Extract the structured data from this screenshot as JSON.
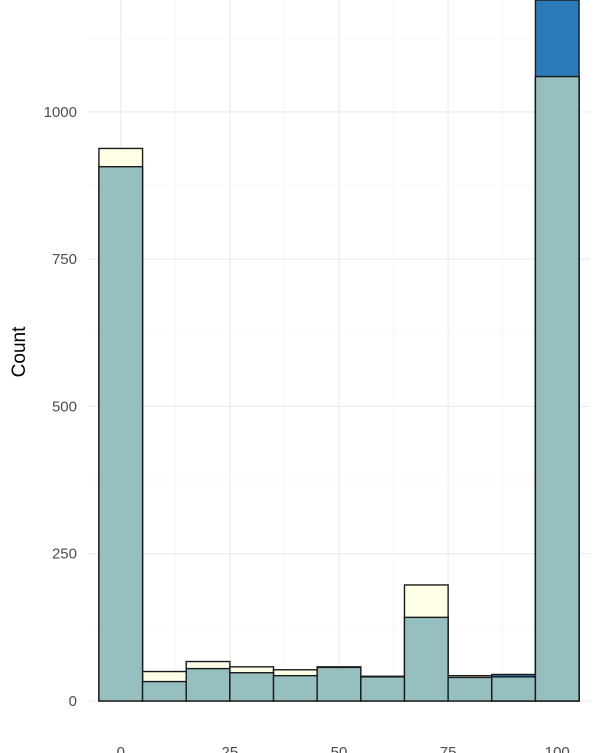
{
  "chart_data": {
    "type": "bar",
    "title": "",
    "xlabel": "",
    "ylabel": "Count",
    "x_ticks": [
      "0",
      "25",
      "50",
      "75",
      "100"
    ],
    "y_ticks": [
      "0",
      "250",
      "500",
      "750",
      "1000"
    ],
    "xlim": [
      -7.5,
      107.5
    ],
    "ylim": [
      0,
      1190
    ],
    "grid": true,
    "bin_width": 10,
    "bins": [
      0,
      10,
      20,
      30,
      40,
      50,
      60,
      70,
      80,
      90,
      100
    ],
    "series": [
      {
        "fill": "#ffffe0",
        "opacity": 0.85,
        "values": [
          938,
          50,
          67,
          58,
          53,
          58,
          42,
          197,
          43,
          43,
          1060
        ]
      },
      {
        "fill": "#2b7bba",
        "opacity": 1,
        "values": [
          0,
          0,
          0,
          0,
          0,
          0,
          0,
          0,
          0,
          45,
          1190
        ]
      },
      {
        "fill": "#96c0c0",
        "opacity": 1,
        "values": [
          907,
          33,
          55,
          48,
          43,
          57,
          41,
          142,
          40,
          41,
          1060
        ]
      }
    ]
  }
}
